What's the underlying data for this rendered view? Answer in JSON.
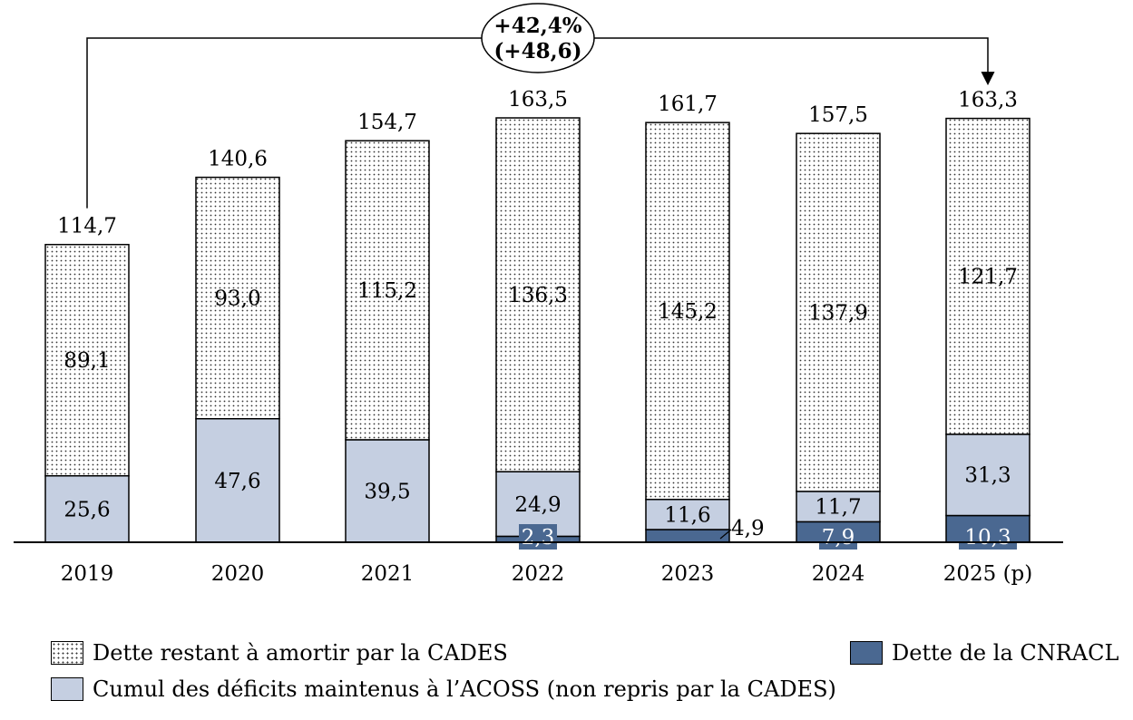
{
  "chart_data": {
    "type": "bar",
    "stacked": true,
    "categories": [
      "2019",
      "2020",
      "2021",
      "2022",
      "2023",
      "2024",
      "2025 (p)"
    ],
    "series": [
      {
        "name": "Dette de la CNRACL",
        "color": "#4a6891",
        "values": [
          0,
          0,
          0,
          2.3,
          4.9,
          7.9,
          10.3
        ],
        "labels": [
          "",
          "",
          "",
          "2,3",
          "4,9",
          "7,9",
          "10,3"
        ]
      },
      {
        "name": "Cumul des déficits maintenus à l’ACOSS (non repris par la CADES)",
        "color": "#c5cfe1",
        "values": [
          25.6,
          47.6,
          39.5,
          24.9,
          11.6,
          11.7,
          31.3
        ],
        "labels": [
          "25,6",
          "47,6",
          "39,5",
          "24,9",
          "11,6",
          "11,7",
          "31,3"
        ]
      },
      {
        "name": "Dette restant à amortir par la CADES",
        "color": "#ffffff",
        "pattern": "dots",
        "values": [
          89.1,
          93.0,
          115.2,
          136.3,
          145.2,
          137.9,
          121.7
        ],
        "labels": [
          "89,1",
          "93,0",
          "115,2",
          "136,3",
          "145,2",
          "137,9",
          "121,7"
        ]
      }
    ],
    "totals": [
      114.7,
      140.6,
      154.7,
      163.5,
      161.7,
      157.5,
      163.3
    ],
    "total_labels": [
      "114,7",
      "140,6",
      "154,7",
      "163,5",
      "161,7",
      "157,5",
      "163,3"
    ],
    "ylim": [
      0,
      163.5
    ],
    "grid": false,
    "annotation": {
      "from": "2019",
      "to": "2025 (p)",
      "line1": "+42,4%",
      "line2": "(+48,6)"
    },
    "legend_placement": "bottom"
  },
  "legend": {
    "cades": "Dette restant à amortir par la CADES",
    "acoss": "Cumul des déficits maintenus à l’ACOSS (non repris par la CADES)",
    "cnracl": "Dette de la CNRACL"
  }
}
